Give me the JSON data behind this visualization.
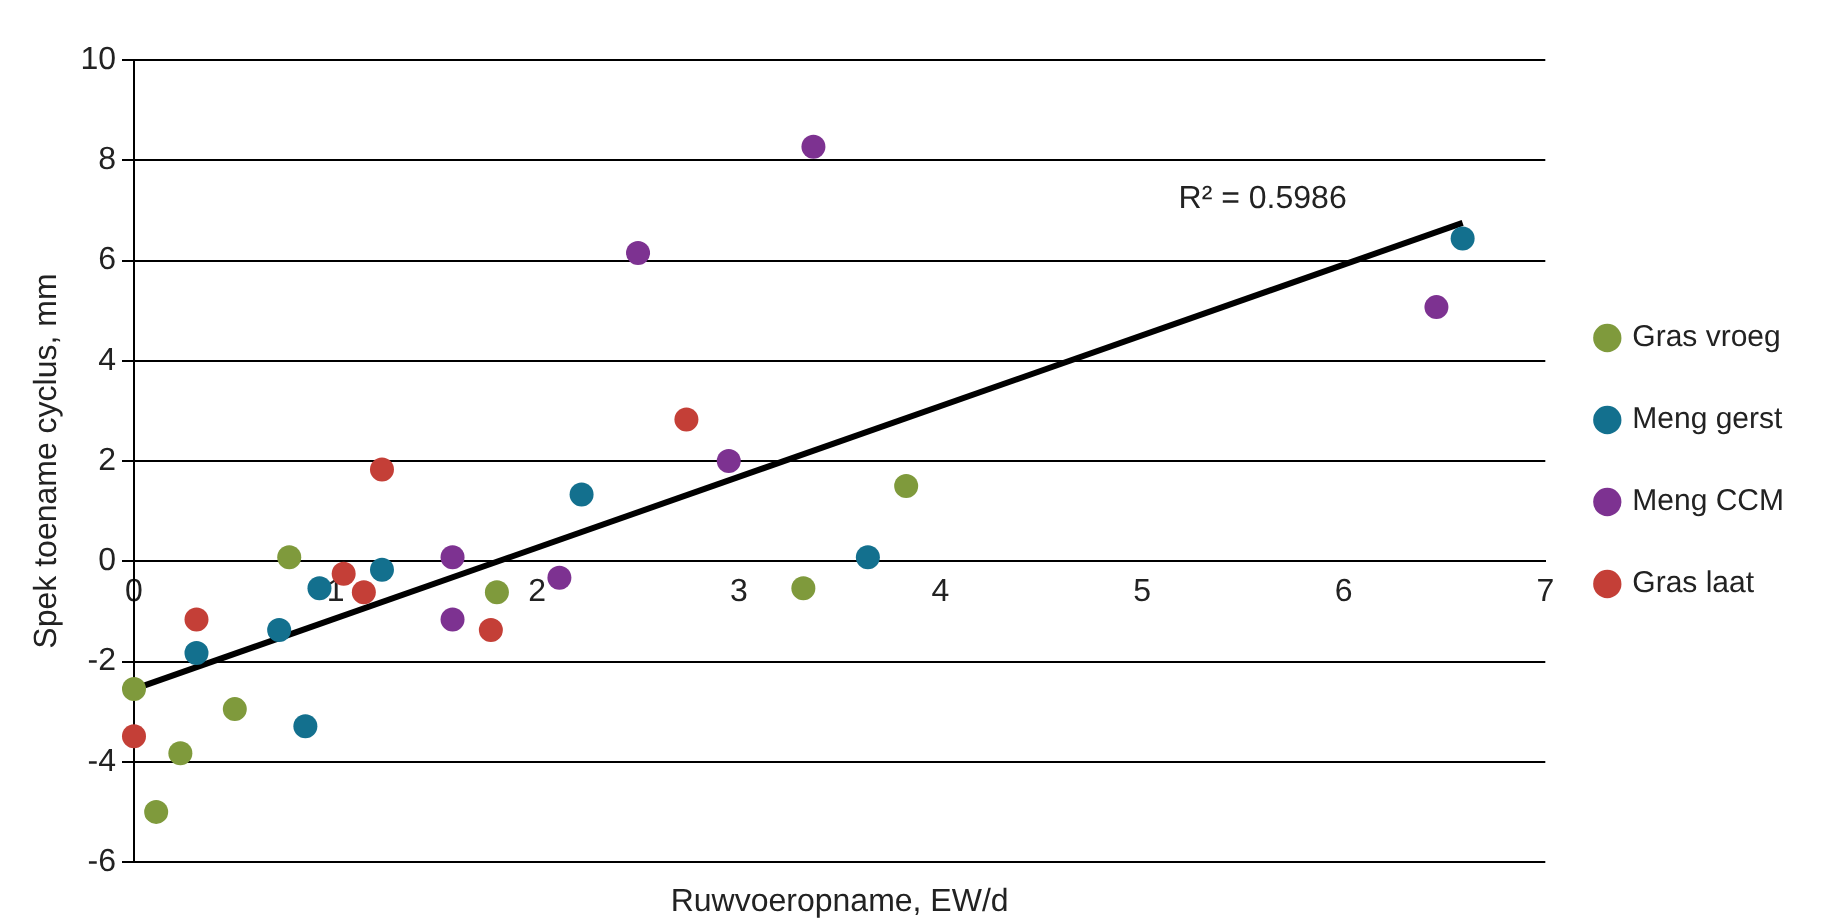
{
  "chart_data": {
    "type": "scatter",
    "xlabel": "Ruwvoeropname, EW/d",
    "ylabel": "Spek toename cyclus, mm",
    "xlim": [
      0,
      7
    ],
    "xticks": [
      0,
      1,
      2,
      3,
      4,
      5,
      6,
      7
    ],
    "ylim": [
      -6,
      10
    ],
    "yticks": [
      -6,
      -4,
      -2,
      0,
      2,
      4,
      6,
      8,
      10
    ],
    "grid": "y",
    "legend": "right",
    "marker": "circle",
    "annotations": [
      "R² = 0.5986"
    ],
    "series": [
      {
        "name": "Gras vroeg",
        "color": "#7f9a3c",
        "x": [
          0,
          0.11,
          0.23,
          0.5,
          0.77,
          1.8,
          3.32,
          3.83
        ],
        "values": [
          -2.55,
          -5.0,
          -3.83,
          -2.95,
          0.08,
          -0.62,
          -0.54,
          1.5
        ]
      },
      {
        "name": "Meng gerst",
        "color": "#13708e",
        "x": [
          0.31,
          0.72,
          0.85,
          0.92,
          1.23,
          2.22,
          3.64,
          6.59
        ],
        "values": [
          -1.83,
          -1.37,
          -3.29,
          -0.54,
          -0.17,
          1.33,
          0.08,
          6.44
        ]
      },
      {
        "name": "Meng CCM",
        "color": "#7d3291",
        "x": [
          1.58,
          1.58,
          2.11,
          2.5,
          2.95,
          3.37,
          6.46
        ],
        "values": [
          0.08,
          -1.16,
          -0.33,
          6.15,
          2.0,
          8.27,
          5.07
        ]
      },
      {
        "name": "Gras laat",
        "color": "#c43f37",
        "x": [
          0,
          0.31,
          1.04,
          1.14,
          1.23,
          1.77,
          2.74
        ],
        "values": [
          -3.49,
          -1.16,
          -0.25,
          -0.62,
          1.83,
          -1.37,
          2.83
        ]
      },
      {
        "type": "line",
        "marker": "none",
        "color": "#000000",
        "x": [
          0,
          6.59
        ],
        "values": [
          -2.55,
          6.75
        ]
      }
    ]
  }
}
